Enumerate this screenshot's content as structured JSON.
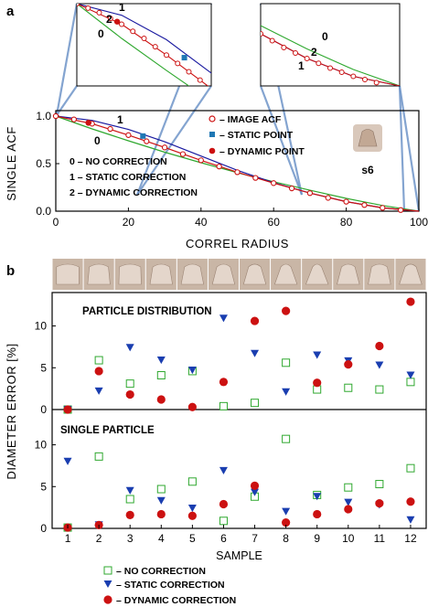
{
  "colors": {
    "image_acf": "#cc1111",
    "curve_static": "#1a1aa0",
    "curve_dynamic": "#cc1111",
    "curve_none": "#2fa82f",
    "static_point": "#1f77b4",
    "dynamic_point": "#cc1111",
    "none_marker": "#2fa82f",
    "static_marker": "#1a3eb0",
    "dynamic_marker": "#cc1111",
    "connector": "#6f95c8",
    "strip_bg": "#c9b6a6"
  },
  "chart_data": [
    {
      "type": "line",
      "panel_label": "a",
      "xlabel": "CORREL  RADIUS",
      "ylabel": "SINGLE  ACF",
      "xlim": [
        0,
        100
      ],
      "ylim": [
        0,
        1.0
      ],
      "x_ticks": [
        0,
        20,
        40,
        60,
        80,
        100
      ],
      "y_ticks": [
        "0.0",
        "0.5",
        "1.0"
      ],
      "curve_labels": [
        "0",
        "1"
      ],
      "series": [
        {
          "name": "",
          "key": "none",
          "x": [
            0,
            10,
            20,
            30,
            40,
            50,
            60,
            70,
            80,
            90,
            100
          ],
          "y": [
            1.0,
            0.865,
            0.74,
            0.62,
            0.51,
            0.405,
            0.31,
            0.22,
            0.135,
            0.06,
            0.0
          ]
        },
        {
          "name": "",
          "key": "static",
          "x": [
            0,
            10,
            20,
            30,
            40,
            50,
            60,
            70,
            80,
            90,
            100
          ],
          "y": [
            1.0,
            0.955,
            0.86,
            0.73,
            0.58,
            0.43,
            0.3,
            0.19,
            0.1,
            0.035,
            0.0
          ]
        },
        {
          "name": "",
          "key": "dynamic",
          "x": [
            0,
            10,
            20,
            30,
            40,
            50,
            60,
            70,
            80,
            90,
            100
          ],
          "y": [
            1.0,
            0.92,
            0.8,
            0.67,
            0.535,
            0.41,
            0.295,
            0.19,
            0.1,
            0.035,
            0.0
          ]
        }
      ],
      "image_acf_points": {
        "x": [
          0,
          5,
          10,
          15,
          20,
          25,
          30,
          35,
          40,
          45,
          50,
          55,
          60,
          65,
          70,
          75,
          80,
          85,
          90,
          95
        ],
        "y": [
          1.0,
          0.965,
          0.92,
          0.865,
          0.8,
          0.735,
          0.67,
          0.6,
          0.535,
          0.47,
          0.41,
          0.35,
          0.295,
          0.24,
          0.19,
          0.14,
          0.1,
          0.065,
          0.035,
          0.012
        ]
      },
      "static_point": {
        "x": 24,
        "y": 0.79
      },
      "dynamic_point": {
        "x": 9,
        "y": 0.93
      },
      "legend": [
        {
          "key": "image",
          "label": "– IMAGE ACF"
        },
        {
          "key": "static_pt",
          "label": "– STATIC POINT"
        },
        {
          "key": "dynamic_pt",
          "label": "– DYNAMIC POINT"
        }
      ],
      "correction_legend": [
        "0 – NO CORRECTION",
        "1 – STATIC CORRECTION",
        "2 – DYNAMIC CORRECTION"
      ],
      "shape_label": "s6",
      "insets": [
        {
          "side": "left",
          "labels": [
            "1",
            "2",
            "0"
          ]
        },
        {
          "side": "right",
          "labels": [
            "0",
            "2",
            "1"
          ]
        }
      ]
    },
    {
      "type": "scatter",
      "panel_label": "b",
      "xlabel": "SAMPLE",
      "ylabel": "DIAMETER  ERROR  [%]",
      "categories": [
        "1",
        "2",
        "3",
        "4",
        "5",
        "6",
        "7",
        "8",
        "9",
        "10",
        "11",
        "12"
      ],
      "y_ticks": [
        "0",
        "5",
        "10"
      ],
      "panels": [
        {
          "title": "PARTICLE DISTRIBUTION",
          "ylim": [
            0,
            14
          ],
          "series": [
            {
              "name": "",
              "key": "none",
              "values": [
                0,
                5.9,
                3.1,
                4.1,
                4.6,
                0.4,
                0.8,
                5.6,
                2.4,
                2.6,
                2.4,
                3.3
              ]
            },
            {
              "name": "",
              "key": "static",
              "values": [
                0,
                2.2,
                7.4,
                5.9,
                4.7,
                10.9,
                6.7,
                2.1,
                6.5,
                5.8,
                5.3,
                4.1
              ]
            },
            {
              "name": "",
              "key": "dynamic",
              "values": [
                0,
                4.6,
                1.8,
                1.2,
                0.3,
                3.3,
                10.6,
                11.8,
                3.2,
                5.4,
                7.6,
                12.9
              ]
            }
          ]
        },
        {
          "title": "SINGLE PARTICLE",
          "ylim": [
            0,
            14
          ],
          "series": [
            {
              "name": "",
              "key": "none",
              "values": [
                0.1,
                8.6,
                3.5,
                4.7,
                5.6,
                0.9,
                3.8,
                10.7,
                4.0,
                4.9,
                5.3,
                7.2
              ]
            },
            {
              "name": "",
              "key": "static",
              "values": [
                8.0,
                0.4,
                4.5,
                3.3,
                2.4,
                6.9,
                4.3,
                2.0,
                3.8,
                3.1,
                2.8,
                1.0
              ]
            },
            {
              "name": "",
              "key": "dynamic",
              "values": [
                0.1,
                0.4,
                1.6,
                1.7,
                1.5,
                2.9,
                5.1,
                0.7,
                1.7,
                2.3,
                3.0,
                3.2
              ]
            }
          ]
        }
      ],
      "legend": [
        {
          "key": "none",
          "label": "– NO CORRECTION"
        },
        {
          "key": "static",
          "label": "– STATIC CORRECTION"
        },
        {
          "key": "dynamic",
          "label": "– DYNAMIC CORRECTION"
        }
      ]
    }
  ]
}
